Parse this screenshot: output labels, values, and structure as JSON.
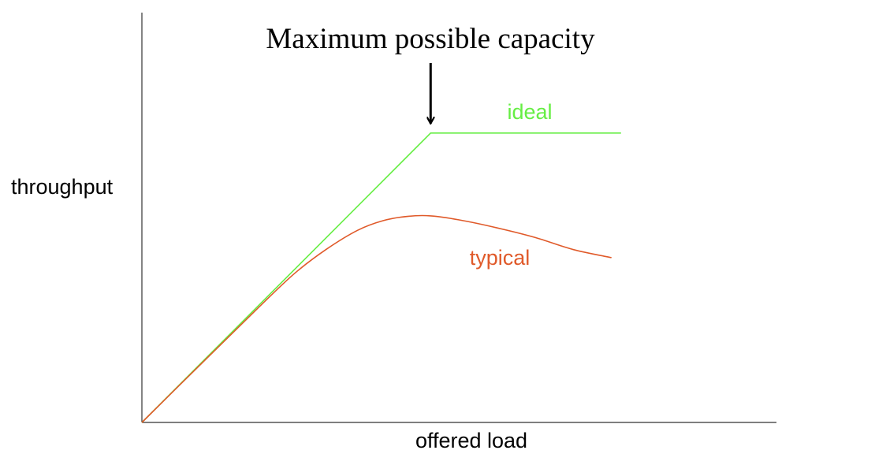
{
  "chart_data": {
    "type": "line",
    "title": "",
    "xlabel": "offered load",
    "ylabel": "throughput",
    "grid": false,
    "legend": "none",
    "xlim": [
      0,
      1
    ],
    "ylim": [
      0,
      1
    ],
    "series": [
      {
        "name": "ideal",
        "color": "#66ee44",
        "x": [
          0,
          0.455,
          0.755
        ],
        "y": [
          0,
          0.72,
          0.72
        ]
      },
      {
        "name": "typical",
        "color": "#e05a2a",
        "x": [
          0,
          0.1,
          0.18,
          0.24,
          0.29,
          0.34,
          0.38,
          0.42,
          0.455,
          0.5,
          0.56,
          0.62,
          0.68,
          0.74
        ],
        "y": [
          0,
          0.156,
          0.28,
          0.37,
          0.43,
          0.478,
          0.502,
          0.513,
          0.514,
          0.504,
          0.484,
          0.46,
          0.43,
          0.41
        ]
      }
    ],
    "annotations": [
      {
        "text": "Maximum possible capacity",
        "arrow_to": {
          "x": 0.455,
          "y": 0.72
        }
      }
    ]
  }
}
